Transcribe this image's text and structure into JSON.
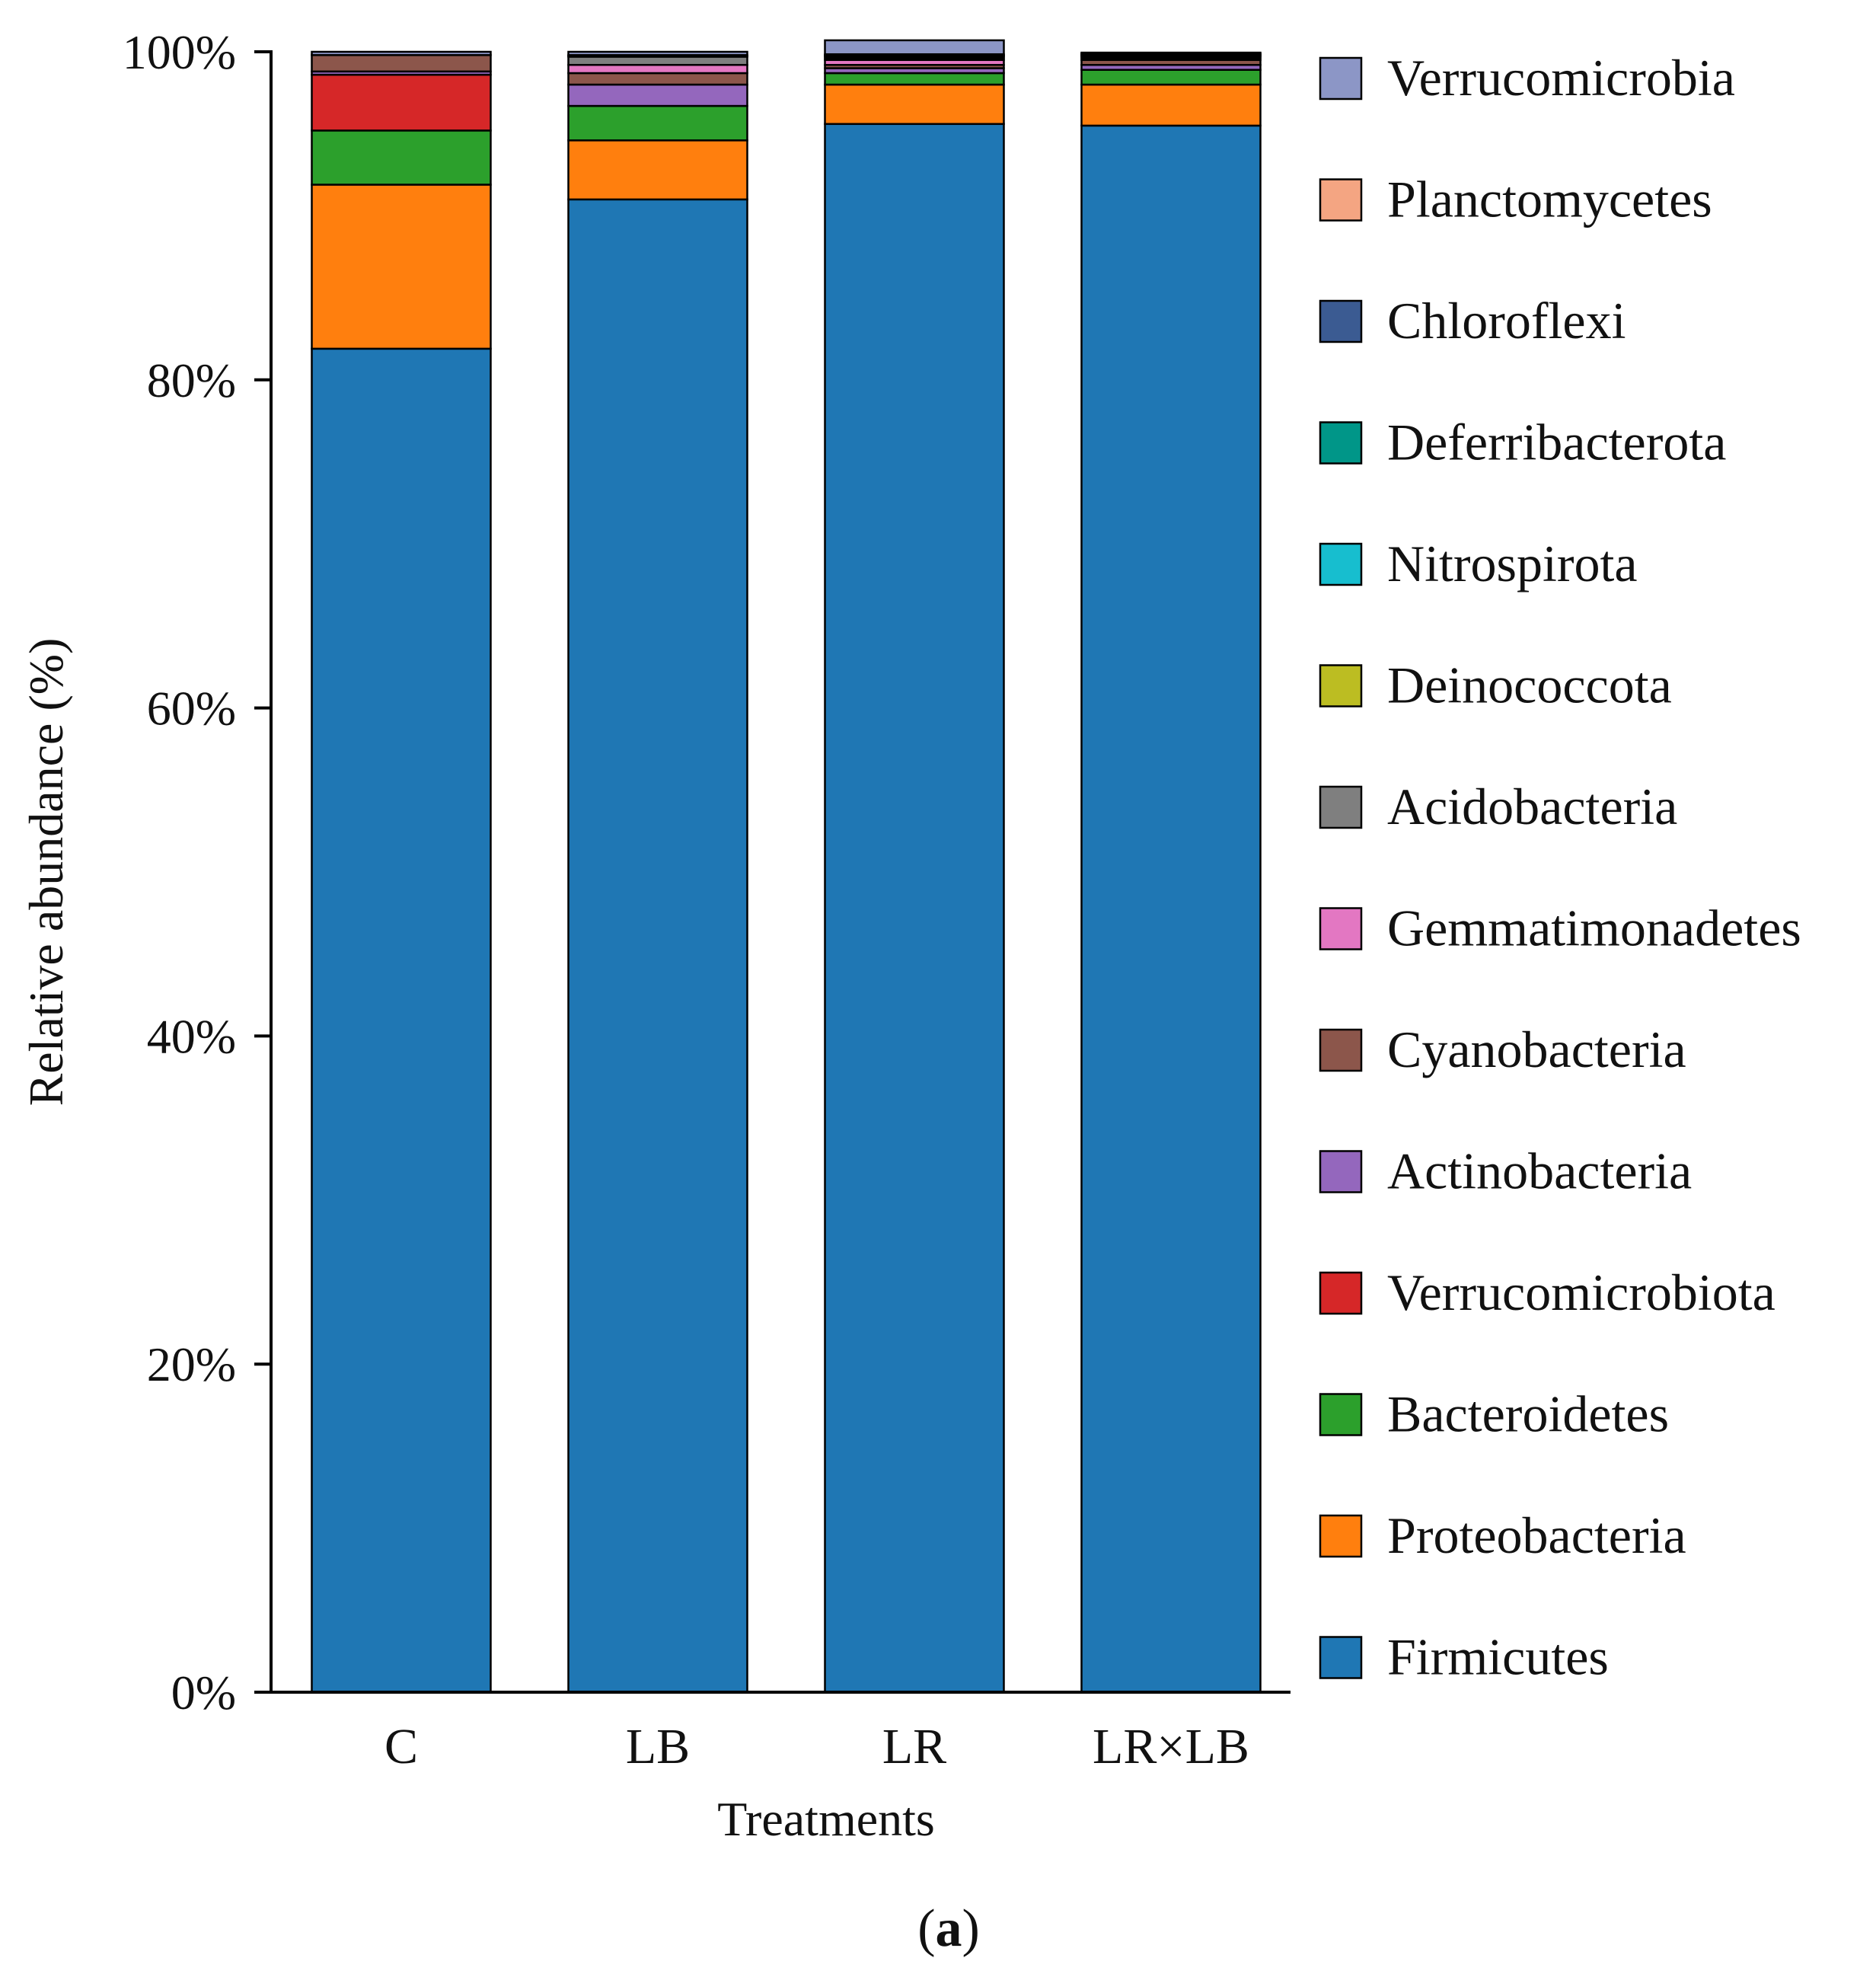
{
  "chart_data": {
    "type": "bar",
    "stacked": true,
    "title": "",
    "xlabel": "Treatments",
    "ylabel": "Relative abundance (%)",
    "ylim": [
      0,
      100
    ],
    "yticks": [
      "0%",
      "20%",
      "40%",
      "60%",
      "80%",
      "100%"
    ],
    "categories": [
      "C",
      "LB",
      "LR",
      "LR×LB"
    ],
    "legend_position": "right",
    "series": [
      {
        "name": "Firmicutes",
        "color": "#1f77b4",
        "values": [
          81.9,
          91.0,
          95.6,
          95.5
        ]
      },
      {
        "name": "Proteobacteria",
        "color": "#ff7f0e",
        "values": [
          10.0,
          3.6,
          2.4,
          2.5
        ]
      },
      {
        "name": "Bacteroidetes",
        "color": "#2ca02c",
        "values": [
          3.3,
          2.1,
          0.7,
          0.9
        ]
      },
      {
        "name": "Verrucomicrobiota",
        "color": "#d62728",
        "values": [
          3.4,
          0.0,
          0.0,
          0.0
        ]
      },
      {
        "name": "Actinobacteria",
        "color": "#9467bd",
        "values": [
          0.2,
          1.3,
          0.3,
          0.3
        ]
      },
      {
        "name": "Cyanobacteria",
        "color": "#8c564b",
        "values": [
          1.0,
          0.7,
          0.2,
          0.3
        ]
      },
      {
        "name": "Gemmatimonadetes",
        "color": "#e377c2",
        "values": [
          0.0,
          0.5,
          0.3,
          0.1
        ]
      },
      {
        "name": "Acidobacteria",
        "color": "#7f7f7f",
        "values": [
          0.0,
          0.5,
          0.1,
          0.1
        ]
      },
      {
        "name": "Deinococcota",
        "color": "#bcbd22",
        "values": [
          0.0,
          0.0,
          0.1,
          0.05
        ]
      },
      {
        "name": "Nitrospirota",
        "color": "#17becf",
        "values": [
          0.0,
          0.0,
          0.05,
          0.05
        ]
      },
      {
        "name": "Deferribacterota",
        "color": "#009688",
        "values": [
          0.0,
          0.0,
          0.05,
          0.05
        ]
      },
      {
        "name": "Chloroflexi",
        "color": "#3b5b92",
        "values": [
          0.0,
          0.05,
          0.05,
          0.05
        ]
      },
      {
        "name": "Planctomycetes",
        "color": "#f4a582",
        "values": [
          0.0,
          0.05,
          0.0,
          0.0
        ]
      },
      {
        "name": "Verrucomicrobia",
        "color": "#8c96c6",
        "values": [
          0.2,
          0.2,
          0.85,
          0.05
        ]
      }
    ],
    "legend_order": [
      "Verrucomicrobia",
      "Planctomycetes",
      "Chloroflexi",
      "Deferribacterota",
      "Nitrospirota",
      "Deinococcota",
      "Acidobacteria",
      "Gemmatimonadetes",
      "Cyanobacteria",
      "Actinobacteria",
      "Verrucomicrobiota",
      "Bacteroidetes",
      "Proteobacteria",
      "Firmicutes"
    ]
  },
  "panel_label": {
    "open": "(",
    "letter": "a",
    "close": ")"
  }
}
